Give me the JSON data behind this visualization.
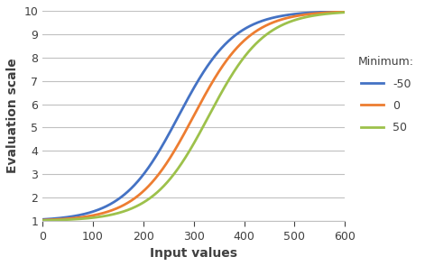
{
  "title": "",
  "xlabel": "Input values",
  "ylabel": "Evaluation scale",
  "xlim": [
    0,
    600
  ],
  "ylim": [
    1,
    10
  ],
  "xticks": [
    0,
    100,
    200,
    300,
    400,
    500,
    600
  ],
  "yticks": [
    1,
    2,
    3,
    4,
    5,
    6,
    7,
    8,
    9,
    10
  ],
  "curves": [
    {
      "minimum": -50,
      "color": "#4472C4",
      "label": "-50",
      "inflection": 270
    },
    {
      "minimum": 0,
      "color": "#ED7D31",
      "label": "0",
      "inflection": 300
    },
    {
      "minimum": 50,
      "color": "#9DC14B",
      "label": "50",
      "inflection": 330
    }
  ],
  "legend_title": "Minimum:",
  "max_val": 10,
  "min_val": 1,
  "steepness": 0.018,
  "background_color": "#ffffff",
  "grid_color": "#C0C0C0",
  "font_color": "#404040"
}
